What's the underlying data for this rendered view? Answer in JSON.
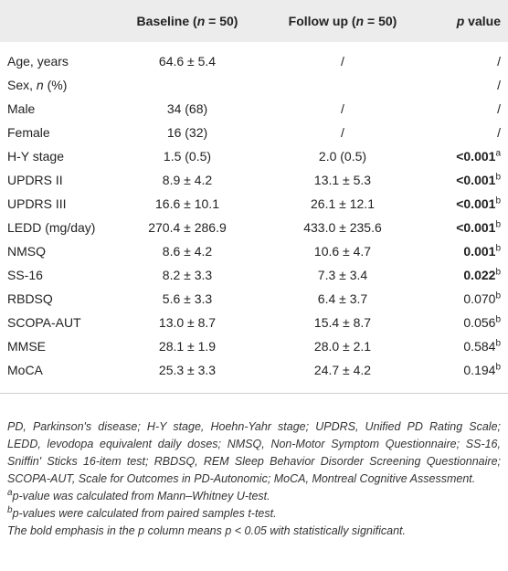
{
  "table": {
    "header": [
      [
        {
          "text": "Baseline ("
        },
        {
          "text": "n",
          "italic": true
        },
        {
          "text": " = 50)"
        }
      ],
      [
        {
          "text": "Follow up ("
        },
        {
          "text": "n",
          "italic": true
        },
        {
          "text": " = 50)"
        }
      ],
      [
        {
          "text": "p",
          "italic": true
        },
        {
          "text": " value"
        }
      ]
    ],
    "rows": [
      [
        "Age, years",
        "64.6 ± 5.4",
        "/",
        {
          "text": "/"
        }
      ],
      [
        [
          {
            "text": "Sex, "
          },
          {
            "text": "n",
            "italic": true
          },
          {
            "text": " (%)"
          }
        ],
        null,
        null,
        {
          "text": "/"
        }
      ],
      [
        "Male",
        "34 (68)",
        "/",
        {
          "text": "/"
        }
      ],
      [
        "Female",
        "16 (32)",
        "/",
        {
          "text": "/"
        }
      ],
      [
        "H-Y stage",
        "1.5 (0.5)",
        "2.0 (0.5)",
        {
          "text": "<0.001",
          "sup": "a",
          "bold": true
        }
      ],
      [
        "UPDRS II",
        "8.9 ± 4.2",
        "13.1 ± 5.3",
        {
          "text": "<0.001",
          "sup": "b",
          "bold": true
        }
      ],
      [
        "UPDRS III",
        "16.6 ± 10.1",
        "26.1 ± 12.1",
        {
          "text": "<0.001",
          "sup": "b",
          "bold": true
        }
      ],
      [
        "LEDD (mg/day)",
        "270.4 ± 286.9",
        "433.0 ± 235.6",
        {
          "text": "<0.001",
          "sup": "b",
          "bold": true
        }
      ],
      [
        "NMSQ",
        "8.6 ± 4.2",
        "10.6 ± 4.7",
        {
          "text": "0.001",
          "sup": "b",
          "bold": true
        }
      ],
      [
        "SS-16",
        "8.2 ± 3.3",
        "7.3 ± 3.4",
        {
          "text": "0.022",
          "sup": "b",
          "bold": true
        }
      ],
      [
        "RBDSQ",
        "5.6 ± 3.3",
        "6.4 ± 3.7",
        {
          "text": "0.070",
          "sup": "b"
        }
      ],
      [
        "SCOPA-AUT",
        "13.0 ± 8.7",
        "15.4 ± 8.7",
        {
          "text": "0.056",
          "sup": "b"
        }
      ],
      [
        "MMSE",
        "28.1 ± 1.9",
        "28.0 ± 2.1",
        {
          "text": "0.584",
          "sup": "b"
        }
      ],
      [
        "MoCA",
        "25.3 ± 3.3",
        "24.7 ± 4.2",
        {
          "text": "0.194",
          "sup": "b"
        }
      ]
    ]
  },
  "footnotes": {
    "abbreviations": "PD, Parkinson's disease; H-Y stage, Hoehn-Yahr stage; UPDRS, Unified PD Rating Scale; LEDD, levodopa equivalent daily doses; NMSQ, Non-Motor Symptom Questionnaire; SS-16, Sniffin' Sticks 16-item test; RBDSQ, REM Sleep Behavior Disorder Screening Questionnaire; SCOPA-AUT, Scale for Outcomes in PD-Autonomic; MoCA, Montreal Cognitive Assessment.",
    "notes": [
      {
        "mark": "a",
        "text": "p-value was calculated from Mann–Whitney U-test."
      },
      {
        "mark": "b",
        "text": "p-values were calculated from paired samples t-test."
      }
    ],
    "emphasis": "The bold emphasis in the p column means p < 0.05 with statistically significant."
  }
}
